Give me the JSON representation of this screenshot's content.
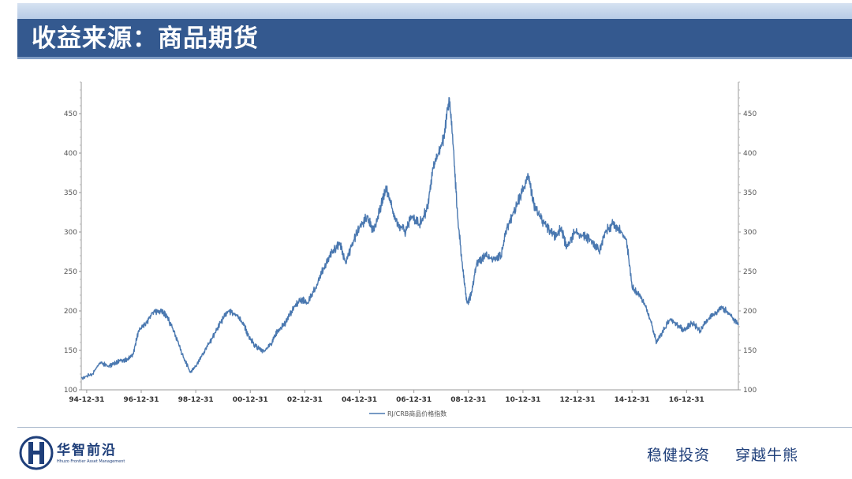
{
  "header": {
    "title": "收益来源：商品期货"
  },
  "chart_data": {
    "type": "line",
    "title": "",
    "xlabel": "",
    "ylabel": "",
    "ylim": [
      100,
      490
    ],
    "yticks": [
      100,
      150,
      200,
      250,
      300,
      350,
      400,
      450
    ],
    "dual_y_axis": true,
    "grid": false,
    "legend_position": "bottom-center",
    "x_tick_labels": [
      "94-12-31",
      "96-12-31",
      "98-12-31",
      "00-12-31",
      "02-12-31",
      "04-12-31",
      "06-12-31",
      "08-12-31",
      "10-12-31",
      "12-12-31",
      "14-12-31",
      "16-12-31"
    ],
    "x_range": [
      1994.8,
      2018.9
    ],
    "series": [
      {
        "name": "RJ/CRB商品价格指数",
        "color": "#4a78b0",
        "x": [
          1994.8,
          1995.2,
          1995.5,
          1995.8,
          1996.0,
          1996.2,
          1996.5,
          1996.7,
          1996.9,
          1997.2,
          1997.4,
          1997.7,
          1997.9,
          1998.2,
          1998.5,
          1998.8,
          1999.0,
          1999.3,
          1999.6,
          1999.9,
          2000.2,
          2000.5,
          2000.8,
          2000.9,
          2001.2,
          2001.5,
          2001.8,
          2002.0,
          2002.3,
          2002.6,
          2002.9,
          2003.1,
          2003.4,
          2003.7,
          2004.0,
          2004.3,
          2004.5,
          2004.8,
          2005.0,
          2005.3,
          2005.5,
          2005.8,
          2006.0,
          2006.2,
          2006.4,
          2006.7,
          2006.9,
          2007.2,
          2007.5,
          2007.7,
          2007.9,
          2008.1,
          2008.3,
          2008.45,
          2008.6,
          2008.8,
          2008.95,
          2009.1,
          2009.3,
          2009.6,
          2009.9,
          2010.2,
          2010.4,
          2010.6,
          2010.9,
          2011.2,
          2011.4,
          2011.6,
          2011.8,
          2012.0,
          2012.2,
          2012.4,
          2012.6,
          2012.9,
          2013.2,
          2013.5,
          2013.8,
          2014.0,
          2014.3,
          2014.5,
          2014.8,
          2015.0,
          2015.3,
          2015.5,
          2015.7,
          2015.9,
          2016.1,
          2016.4,
          2016.7,
          2016.9,
          2017.2,
          2017.5,
          2017.8,
          2018.0,
          2018.3,
          2018.6,
          2018.9
        ],
        "y": [
          115,
          120,
          135,
          130,
          133,
          137,
          138,
          145,
          175,
          185,
          198,
          200,
          195,
          175,
          145,
          122,
          130,
          148,
          165,
          185,
          200,
          195,
          180,
          170,
          155,
          148,
          160,
          175,
          185,
          205,
          215,
          210,
          230,
          255,
          275,
          285,
          260,
          290,
          305,
          320,
          300,
          335,
          355,
          330,
          310,
          300,
          320,
          310,
          330,
          380,
          400,
          420,
          470,
          405,
          320,
          250,
          210,
          220,
          260,
          270,
          265,
          270,
          305,
          320,
          345,
          370,
          335,
          320,
          310,
          300,
          295,
          305,
          280,
          300,
          295,
          290,
          275,
          300,
          310,
          305,
          290,
          230,
          220,
          205,
          185,
          160,
          172,
          190,
          180,
          176,
          185,
          175,
          190,
          195,
          205,
          195,
          182
        ]
      }
    ]
  },
  "footer": {
    "logo_cn": "华智前沿",
    "logo_en": "Hhuzo Frontier Asset Management",
    "slogan_1": "稳健投资",
    "slogan_2": "穿越牛熊"
  }
}
